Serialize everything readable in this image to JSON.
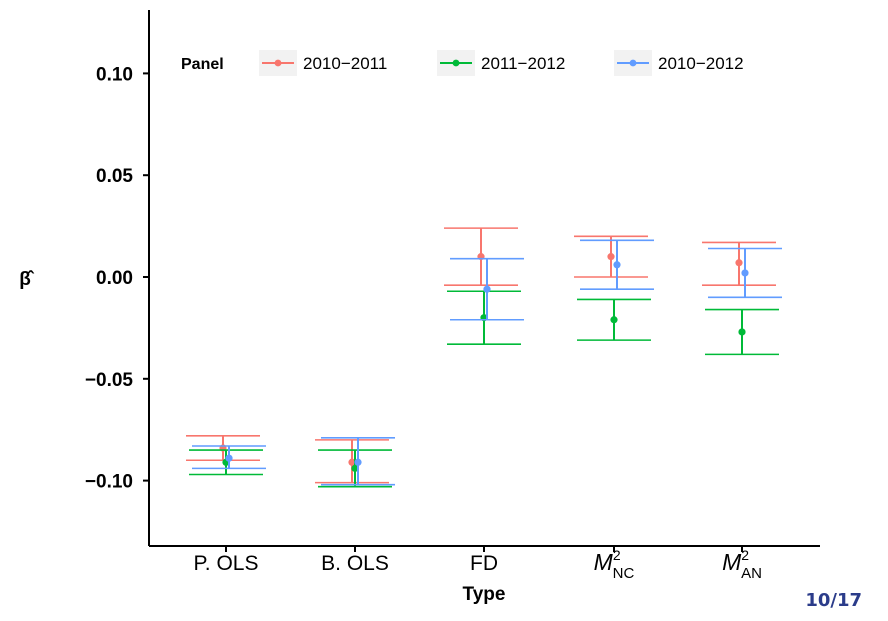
{
  "page_number": "10/17",
  "chart_data": {
    "type": "errorbar",
    "xlabel": "Type",
    "ylabel": "β̂",
    "ylim": [
      -0.13,
      0.13
    ],
    "y_ticks": [
      0.1,
      0.05,
      0.0,
      -0.05,
      -0.1
    ],
    "y_tick_labels": [
      "0.10",
      "0.05",
      "0.00",
      "−0.05",
      "−0.10"
    ],
    "categories": [
      "P. OLS",
      "B. OLS",
      "FD",
      "M_NC^2",
      "M_AN^2"
    ],
    "category_labels": [
      {
        "main": "P. OLS",
        "sup": "",
        "sub": ""
      },
      {
        "main": "B. OLS",
        "sup": "",
        "sub": ""
      },
      {
        "main": "FD",
        "sup": "",
        "sub": ""
      },
      {
        "main": "M",
        "sup": "2",
        "sub": "NC"
      },
      {
        "main": "M",
        "sup": "2",
        "sub": "AN"
      }
    ],
    "legend": {
      "title": "Panel",
      "placement": "top"
    },
    "series": [
      {
        "name": "2010−2011",
        "color": "#F8766D",
        "estimates": [
          -0.084,
          -0.091,
          0.01,
          0.01,
          0.007
        ],
        "lower": [
          -0.09,
          -0.101,
          -0.004,
          0.0,
          -0.004
        ],
        "upper": [
          -0.078,
          -0.08,
          0.024,
          0.02,
          0.017
        ]
      },
      {
        "name": "2011−2012",
        "color": "#00BA38",
        "estimates": [
          -0.091,
          -0.094,
          -0.02,
          -0.021,
          -0.027
        ],
        "lower": [
          -0.097,
          -0.103,
          -0.033,
          -0.031,
          -0.038
        ],
        "upper": [
          -0.085,
          -0.085,
          -0.007,
          -0.011,
          -0.016
        ]
      },
      {
        "name": "2010−2012",
        "color": "#619CFF",
        "estimates": [
          -0.089,
          -0.091,
          -0.006,
          0.006,
          0.002
        ],
        "lower": [
          -0.094,
          -0.102,
          -0.021,
          -0.006,
          -0.01
        ],
        "upper": [
          -0.083,
          -0.079,
          0.009,
          0.018,
          0.014
        ]
      }
    ],
    "grid": false
  }
}
